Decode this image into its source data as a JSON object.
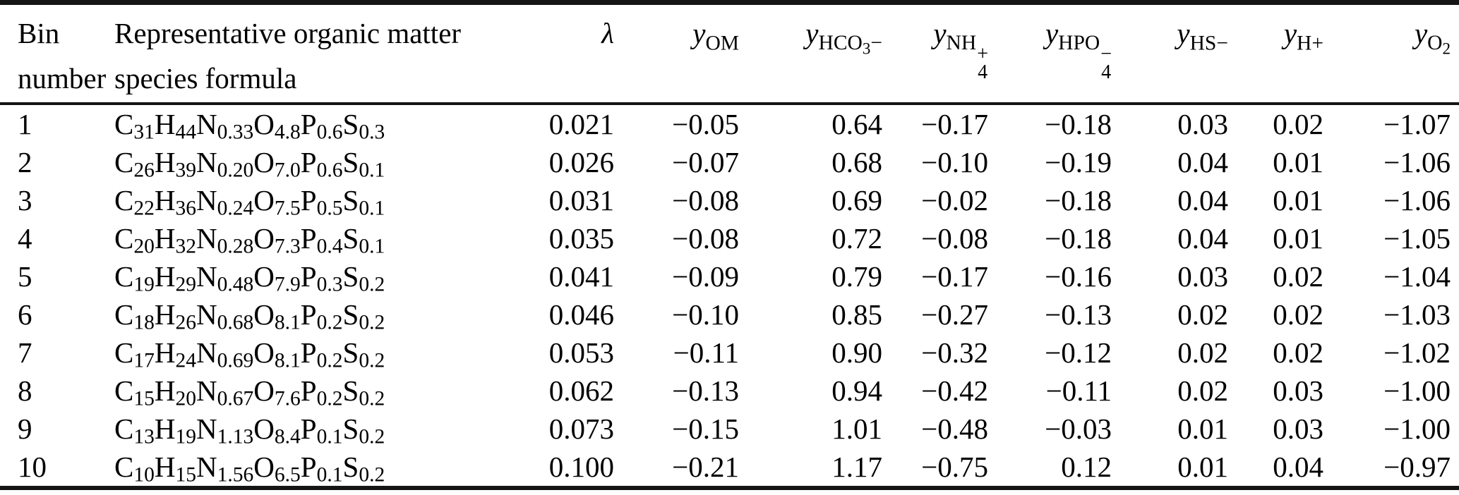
{
  "colors": {
    "background": "#ffffff",
    "text": "#000000",
    "rule": "#151515"
  },
  "table": {
    "columns": [
      {
        "id": "bin",
        "line1": "Bin",
        "line2": "number"
      },
      {
        "id": "formula",
        "line1": "Representative organic matter",
        "line2": "species formula"
      },
      {
        "id": "lambda",
        "math": [
          {
            "ital": "λ"
          }
        ]
      },
      {
        "id": "y-om",
        "math": [
          {
            "ital": "y"
          },
          {
            "sub": [
              {
                "txt": "OM"
              }
            ]
          }
        ]
      },
      {
        "id": "y-hco3",
        "math": [
          {
            "ital": "y"
          },
          {
            "sub": [
              {
                "txt": "HCO"
              },
              {
                "ssub": "3"
              },
              {
                "txt": "−"
              }
            ]
          }
        ]
      },
      {
        "id": "y-nh4",
        "math": [
          {
            "ital": "y"
          },
          {
            "sub": [
              {
                "txt": "NH"
              },
              {
                "stk": [
                  "+",
                  "4"
                ]
              }
            ]
          }
        ]
      },
      {
        "id": "y-hpo4",
        "math": [
          {
            "ital": "y"
          },
          {
            "sub": [
              {
                "txt": "HPO"
              },
              {
                "stk": [
                  "−",
                  "4"
                ]
              }
            ]
          }
        ]
      },
      {
        "id": "y-hs",
        "math": [
          {
            "ital": "y"
          },
          {
            "sub": [
              {
                "txt": "HS−"
              }
            ]
          }
        ]
      },
      {
        "id": "y-h",
        "math": [
          {
            "ital": "y"
          },
          {
            "sub": [
              {
                "txt": "H+"
              }
            ]
          }
        ]
      },
      {
        "id": "y-o2",
        "math": [
          {
            "ital": "y"
          },
          {
            "sub": [
              {
                "txt": "O"
              },
              {
                "ssub": "2"
              }
            ]
          }
        ]
      }
    ],
    "rows": [
      {
        "bin": "1",
        "formula": [
          [
            "C",
            "31"
          ],
          [
            "H",
            "44"
          ],
          [
            "N",
            "0.33"
          ],
          [
            "O",
            "4.8"
          ],
          [
            "P",
            "0.6"
          ],
          [
            "S",
            "0.3"
          ]
        ],
        "values": [
          "0.021",
          "−0.05",
          "0.64",
          "−0.17",
          "−0.18",
          "0.03",
          "0.02",
          "−1.07"
        ]
      },
      {
        "bin": "2",
        "formula": [
          [
            "C",
            "26"
          ],
          [
            "H",
            "39"
          ],
          [
            "N",
            "0.20"
          ],
          [
            "O",
            "7.0"
          ],
          [
            "P",
            "0.6"
          ],
          [
            "S",
            "0.1"
          ]
        ],
        "values": [
          "0.026",
          "−0.07",
          "0.68",
          "−0.10",
          "−0.19",
          "0.04",
          "0.01",
          "−1.06"
        ]
      },
      {
        "bin": "3",
        "formula": [
          [
            "C",
            "22"
          ],
          [
            "H",
            "36"
          ],
          [
            "N",
            "0.24"
          ],
          [
            "O",
            "7.5"
          ],
          [
            "P",
            "0.5"
          ],
          [
            "S",
            "0.1"
          ]
        ],
        "values": [
          "0.031",
          "−0.08",
          "0.69",
          "−0.02",
          "−0.18",
          "0.04",
          "0.01",
          "−1.06"
        ]
      },
      {
        "bin": "4",
        "formula": [
          [
            "C",
            "20"
          ],
          [
            "H",
            "32"
          ],
          [
            "N",
            "0.28"
          ],
          [
            "O",
            "7.3"
          ],
          [
            "P",
            "0.4"
          ],
          [
            "S",
            "0.1"
          ]
        ],
        "values": [
          "0.035",
          "−0.08",
          "0.72",
          "−0.08",
          "−0.18",
          "0.04",
          "0.01",
          "−1.05"
        ]
      },
      {
        "bin": "5",
        "formula": [
          [
            "C",
            "19"
          ],
          [
            "H",
            "29"
          ],
          [
            "N",
            "0.48"
          ],
          [
            "O",
            "7.9"
          ],
          [
            "P",
            "0.3"
          ],
          [
            "S",
            "0.2"
          ]
        ],
        "values": [
          "0.041",
          "−0.09",
          "0.79",
          "−0.17",
          "−0.16",
          "0.03",
          "0.02",
          "−1.04"
        ]
      },
      {
        "bin": "6",
        "formula": [
          [
            "C",
            "18"
          ],
          [
            "H",
            "26"
          ],
          [
            "N",
            "0.68"
          ],
          [
            "O",
            "8.1"
          ],
          [
            "P",
            "0.2"
          ],
          [
            "S",
            "0.2"
          ]
        ],
        "values": [
          "0.046",
          "−0.10",
          "0.85",
          "−0.27",
          "−0.13",
          "0.02",
          "0.02",
          "−1.03"
        ]
      },
      {
        "bin": "7",
        "formula": [
          [
            "C",
            "17"
          ],
          [
            "H",
            "24"
          ],
          [
            "N",
            "0.69"
          ],
          [
            "O",
            "8.1"
          ],
          [
            "P",
            "0.2"
          ],
          [
            "S",
            "0.2"
          ]
        ],
        "values": [
          "0.053",
          "−0.11",
          "0.90",
          "−0.32",
          "−0.12",
          "0.02",
          "0.02",
          "−1.02"
        ]
      },
      {
        "bin": "8",
        "formula": [
          [
            "C",
            "15"
          ],
          [
            "H",
            "20"
          ],
          [
            "N",
            "0.67"
          ],
          [
            "O",
            "7.6"
          ],
          [
            "P",
            "0.2"
          ],
          [
            "S",
            "0.2"
          ]
        ],
        "values": [
          "0.062",
          "−0.13",
          "0.94",
          "−0.42",
          "−0.11",
          "0.02",
          "0.03",
          "−1.00"
        ]
      },
      {
        "bin": "9",
        "formula": [
          [
            "C",
            "13"
          ],
          [
            "H",
            "19"
          ],
          [
            "N",
            "1.13"
          ],
          [
            "O",
            "8.4"
          ],
          [
            "P",
            "0.1"
          ],
          [
            "S",
            "0.2"
          ]
        ],
        "values": [
          "0.073",
          "−0.15",
          "1.01",
          "−0.48",
          "−0.03",
          "0.01",
          "0.03",
          "−1.00"
        ]
      },
      {
        "bin": "10",
        "formula": [
          [
            "C",
            "10"
          ],
          [
            "H",
            "15"
          ],
          [
            "N",
            "1.56"
          ],
          [
            "O",
            "6.5"
          ],
          [
            "P",
            "0.1"
          ],
          [
            "S",
            "0.2"
          ]
        ],
        "values": [
          "0.100",
          "−0.21",
          "1.17",
          "−0.75",
          "0.12",
          "0.01",
          "0.04",
          "−0.97"
        ]
      }
    ]
  }
}
